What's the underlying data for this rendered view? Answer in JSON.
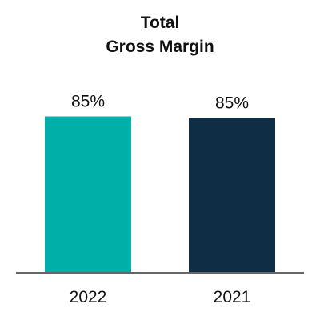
{
  "chart_data": {
    "type": "bar",
    "title_lines": [
      "Total",
      "Gross Margin"
    ],
    "categories": [
      "2022",
      "2021"
    ],
    "values": [
      85,
      85
    ],
    "data_labels": [
      "85%",
      "85%"
    ],
    "xlabel": "",
    "ylabel": "",
    "ylim": [
      0,
      100
    ],
    "grid": false,
    "legend": "none",
    "colors": [
      "#00B0A8",
      "#0F2E45"
    ],
    "axis_color": "#666666"
  }
}
